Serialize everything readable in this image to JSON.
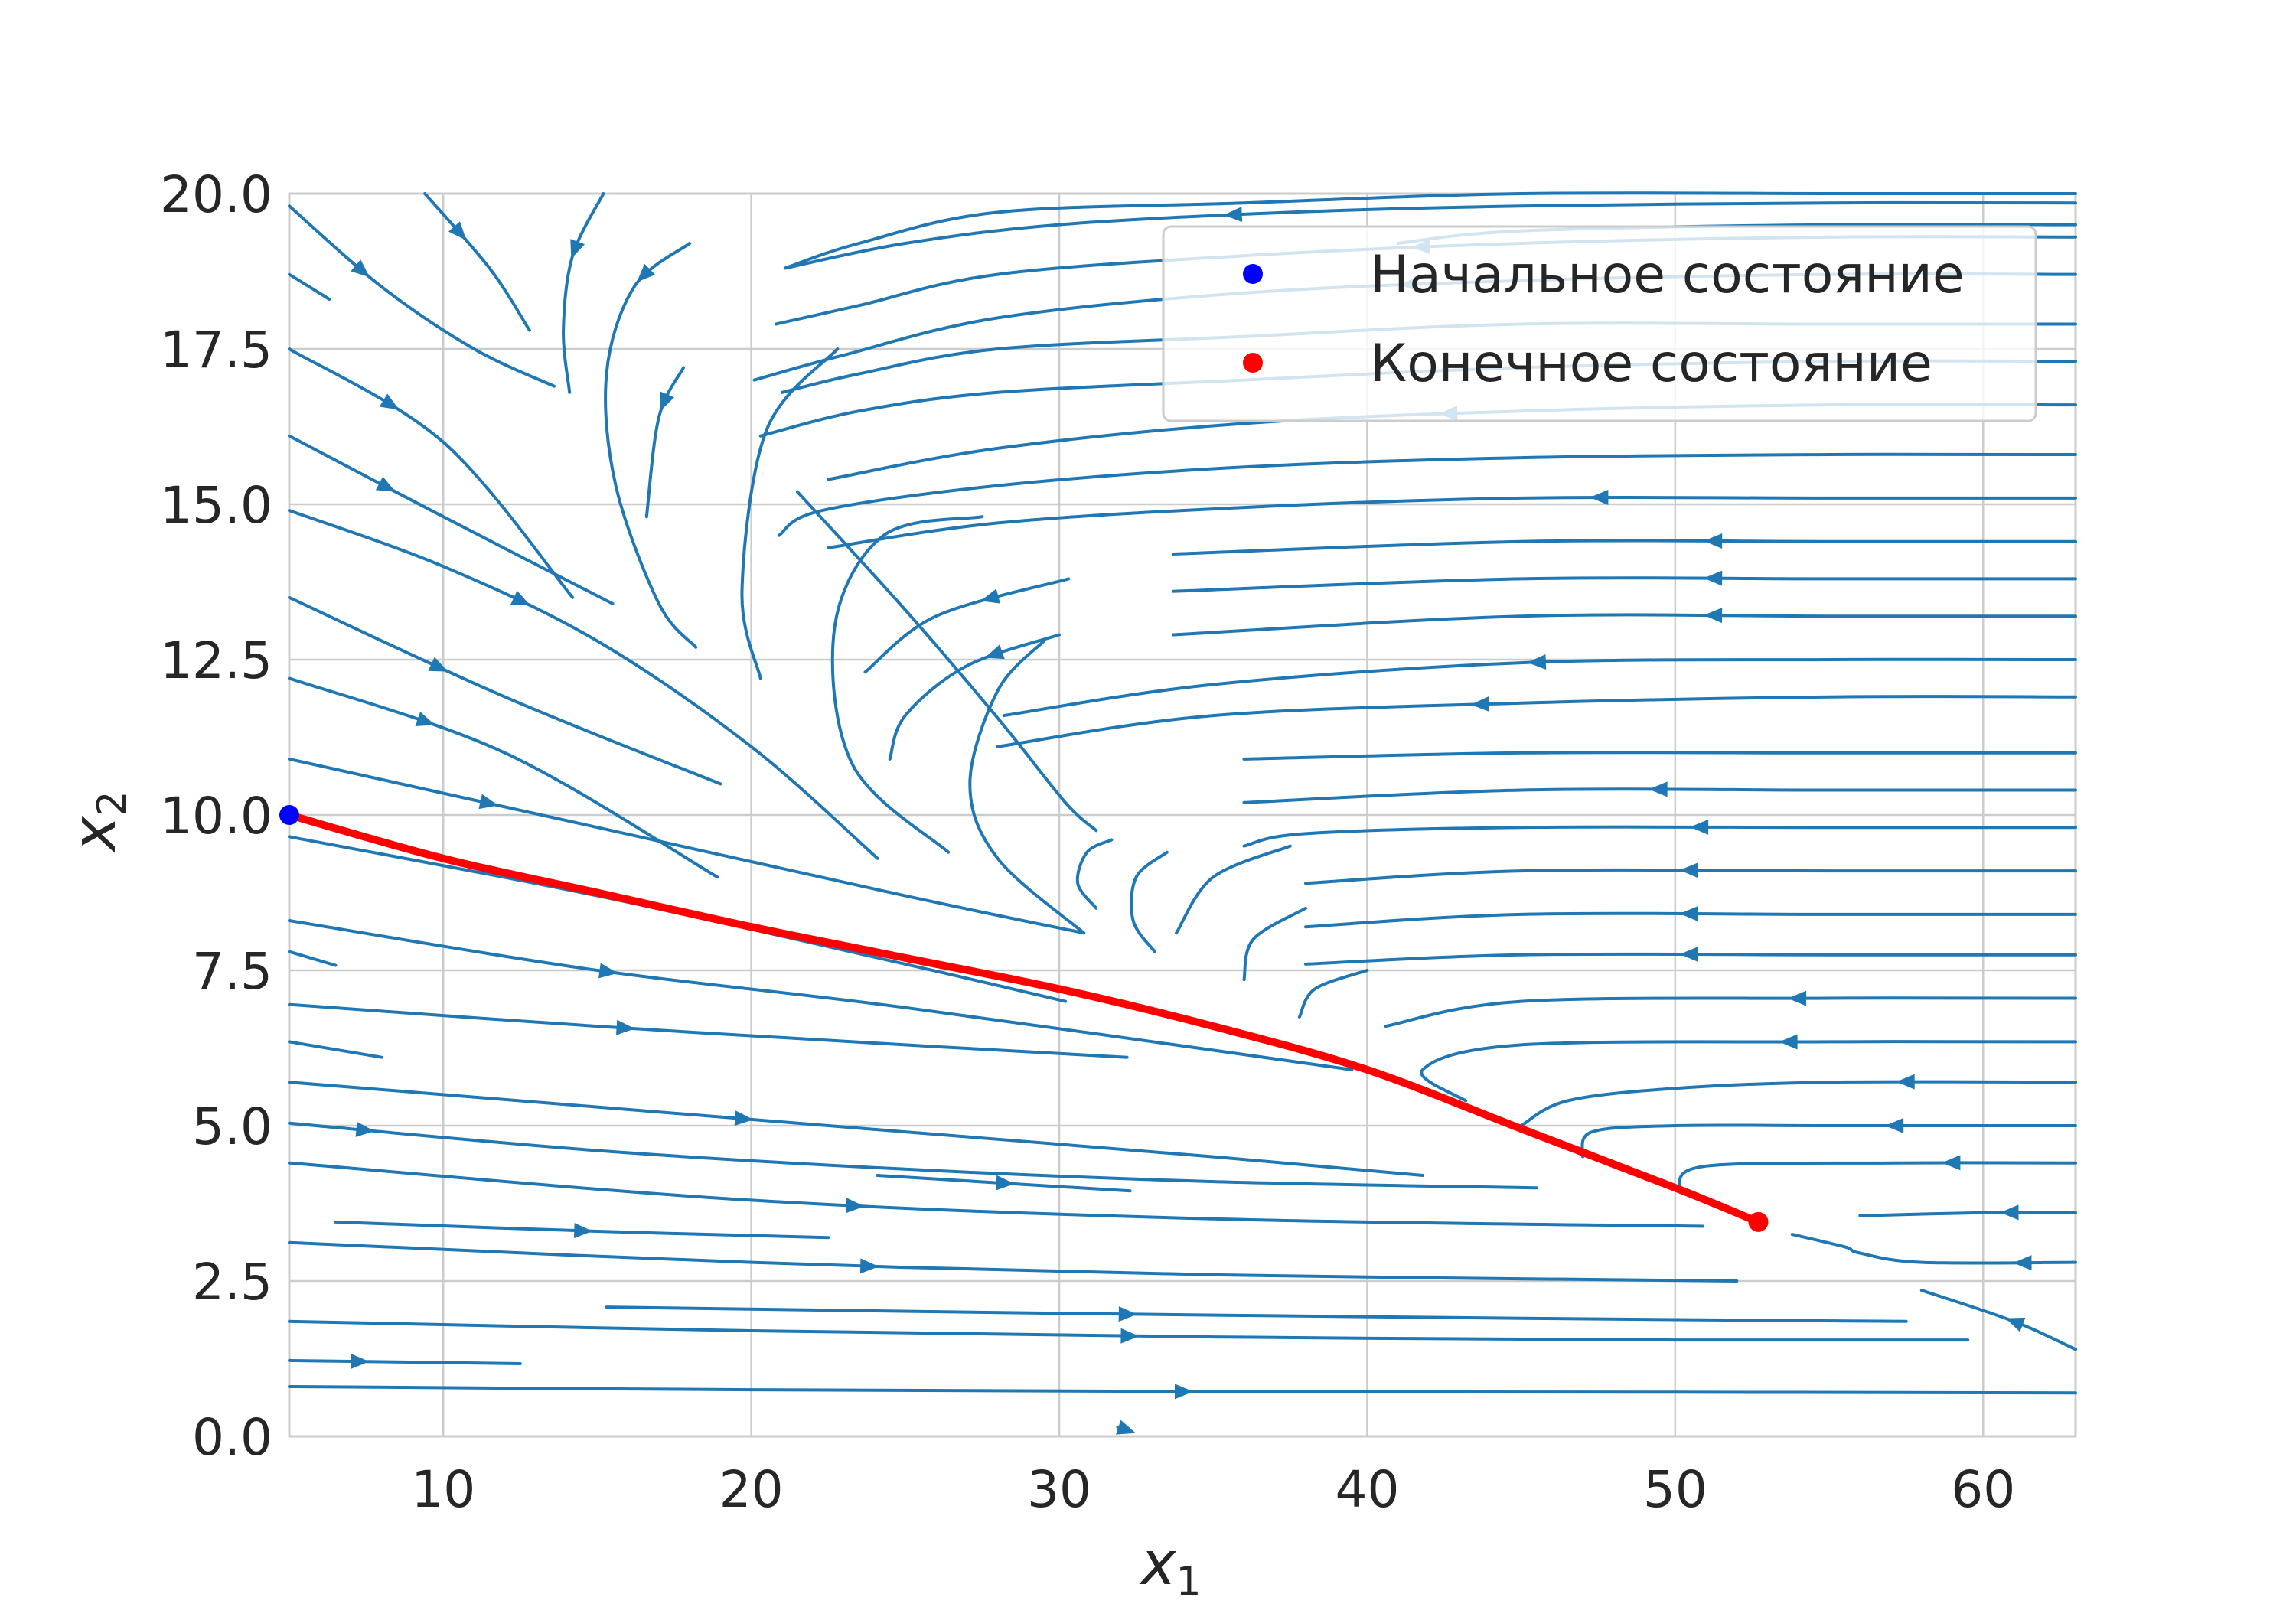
{
  "chart_data": {
    "type": "streamplot",
    "xlabel": "x",
    "xlabel_sub": "1",
    "ylabel": "x",
    "ylabel_sub": "2",
    "xlim": [
      5,
      63
    ],
    "ylim": [
      0,
      20
    ],
    "xticks": [
      10,
      20,
      30,
      40,
      50,
      60
    ],
    "xtick_labels": [
      "10",
      "20",
      "30",
      "40",
      "50",
      "60"
    ],
    "yticks": [
      0,
      2.5,
      5,
      7.5,
      10,
      12.5,
      15,
      17.5,
      20
    ],
    "ytick_labels": [
      "0.0",
      "2.5",
      "5.0",
      "7.5",
      "10.0",
      "12.5",
      "15.0",
      "17.5",
      "20.0"
    ],
    "grid": true,
    "legend": {
      "placement": "upper right",
      "entries": [
        {
          "label": "Начальное состояние",
          "color": "#0000ff",
          "marker": "dot"
        },
        {
          "label": "Конечное состояние",
          "color": "#ff0000",
          "marker": "dot"
        }
      ]
    },
    "colors": {
      "stream": "#1f77b4",
      "trajectory": "#ff0000",
      "start": "#0000ff",
      "end": "#ff0000",
      "grid": "#cccccc"
    },
    "trajectory": {
      "name": "trajectory",
      "x": [
        5,
        10,
        15,
        20,
        25,
        30,
        35,
        40,
        45,
        50,
        52.7
      ],
      "y": [
        10.0,
        9.3,
        8.75,
        8.2,
        7.7,
        7.2,
        6.6,
        5.9,
        4.95,
        4.0,
        3.45
      ]
    },
    "start_point": {
      "x": 5,
      "y": 10.0
    },
    "end_point": {
      "x": 52.7,
      "y": 3.45
    },
    "streamlines": [
      {
        "x": [
          5,
          20,
          35,
          50,
          63
        ],
        "y": [
          0.8,
          0.75,
          0.72,
          0.71,
          0.7
        ],
        "arrow": 0.5
      },
      {
        "x": [
          5,
          12.5
        ],
        "y": [
          1.22,
          1.17
        ],
        "arrow": 0.3
      },
      {
        "x": [
          5,
          20,
          35,
          50,
          59.5
        ],
        "y": [
          1.85,
          1.7,
          1.6,
          1.55,
          1.55
        ],
        "arrow": 0.5
      },
      {
        "x": [
          15.3,
          30,
          45,
          57.5
        ],
        "y": [
          2.08,
          1.98,
          1.9,
          1.85
        ],
        "arrow": 0.4
      },
      {
        "x": [
          5,
          20,
          35,
          52
        ],
        "y": [
          3.12,
          2.8,
          2.6,
          2.5
        ],
        "arrow": 0.4
      },
      {
        "x": [
          6.5,
          15,
          22.5
        ],
        "y": [
          3.45,
          3.3,
          3.2
        ],
        "arrow": 0.5
      },
      {
        "x": [
          5,
          20,
          35,
          50.9
        ],
        "y": [
          4.4,
          3.8,
          3.5,
          3.38
        ],
        "arrow": 0.4
      },
      {
        "x": [
          24.1,
          32.3
        ],
        "y": [
          4.2,
          3.95
        ],
        "arrow": 0.5
      },
      {
        "x": [
          5,
          15,
          25,
          35,
          45.5
        ],
        "y": [
          5.04,
          4.6,
          4.3,
          4.1,
          4.0
        ],
        "arrow": 0.06
      },
      {
        "x": [
          5,
          15,
          25,
          35,
          41.8
        ],
        "y": [
          5.7,
          5.3,
          4.9,
          4.5,
          4.2
        ],
        "arrow": 0.4
      },
      {
        "x": [
          5,
          15,
          25,
          32.2
        ],
        "y": [
          6.95,
          6.6,
          6.3,
          6.1
        ],
        "arrow": 0.4
      },
      {
        "x": [
          5,
          8
        ],
        "y": [
          6.35,
          6.1
        ],
        "arrow": -1
      },
      {
        "x": [
          5,
          6.5
        ],
        "y": [
          7.8,
          7.58
        ],
        "arrow": -1
      },
      {
        "x": [
          5,
          15,
          25,
          39.5
        ],
        "y": [
          8.3,
          7.5,
          6.9,
          5.9
        ],
        "arrow": 0.3
      },
      {
        "x": [
          5,
          15,
          25,
          30.2
        ],
        "y": [
          9.65,
          8.7,
          7.6,
          7.0
        ],
        "arrow": -1
      },
      {
        "x": [
          5,
          15,
          25,
          30.8
        ],
        "y": [
          10.9,
          9.8,
          8.7,
          8.1
        ],
        "arrow": 0.25
      },
      {
        "x": [
          5,
          12,
          18.9
        ],
        "y": [
          12.2,
          11.0,
          9.0
        ],
        "arrow": 0.3
      },
      {
        "x": [
          5,
          12,
          19
        ],
        "y": [
          13.5,
          11.9,
          10.5
        ],
        "arrow": 0.35
      },
      {
        "x": [
          5,
          10,
          15,
          20,
          24.1
        ],
        "y": [
          14.9,
          14.0,
          12.8,
          11.1,
          9.3
        ],
        "arrow": 0.36
      },
      {
        "x": [
          5,
          10,
          15.5
        ],
        "y": [
          16.1,
          14.8,
          13.4
        ],
        "arrow": 0.3
      },
      {
        "x": [
          5,
          10,
          14.2
        ],
        "y": [
          17.5,
          16.0,
          13.5
        ],
        "arrow": 0.3
      },
      {
        "x": [
          5,
          6.3
        ],
        "y": [
          18.7,
          18.3
        ],
        "arrow": -1
      },
      {
        "x": [
          5,
          8,
          11,
          13.6
        ],
        "y": [
          19.8,
          18.5,
          17.5,
          16.9
        ],
        "arrow": 0.3
      },
      {
        "x": [
          9.4,
          11.5,
          12.8
        ],
        "y": [
          20.0,
          18.8,
          17.8
        ],
        "arrow": 0.3
      },
      {
        "x": [
          15.2,
          14.2,
          13.9,
          14.1
        ],
        "y": [
          20.0,
          19.0,
          17.8,
          16.8
        ],
        "arrow": 0.3
      },
      {
        "x": [
          18.0,
          16.2,
          15.3,
          15.6,
          17.0,
          18.2
        ],
        "y": [
          19.2,
          18.5,
          17.1,
          15.3,
          13.4,
          12.7
        ],
        "arrow": 0.12
      },
      {
        "x": [
          17.8,
          17.0,
          16.6
        ],
        "y": [
          17.2,
          16.4,
          14.8
        ],
        "arrow": 0.25
      },
      {
        "x": [
          22.8,
          20.5,
          19.7,
          20.3
        ],
        "y": [
          17.5,
          16.2,
          13.6,
          12.2
        ],
        "arrow": -1
      },
      {
        "x": [
          21.5,
          25,
          28.1,
          30.2,
          31.2
        ],
        "y": [
          15.2,
          13.3,
          11.5,
          10.2,
          9.75
        ],
        "arrow": -1
      },
      {
        "x": [
          27.5,
          24.3,
          22.7,
          23.3,
          26.4
        ],
        "y": [
          14.8,
          14.5,
          13.0,
          10.8,
          9.4
        ],
        "arrow": -1
      },
      {
        "x": [
          30.3,
          26.0,
          23.7
        ],
        "y": [
          13.8,
          13.2,
          12.3
        ],
        "arrow": 0.35
      },
      {
        "x": [
          30.0,
          27.0,
          25.0,
          24.5
        ],
        "y": [
          12.9,
          12.4,
          11.6,
          10.9
        ],
        "arrow": 0.3
      },
      {
        "x": [
          31.7,
          30.9,
          30.6,
          31.2
        ],
        "y": [
          9.6,
          9.4,
          8.9,
          8.5
        ],
        "arrow": -1
      },
      {
        "x": [
          29.5,
          28.0,
          27.1,
          28.0,
          30.8
        ],
        "y": [
          12.8,
          12.0,
          10.5,
          9.3,
          8.1
        ],
        "arrow": -1
      },
      {
        "x": [
          33.5,
          32.5,
          32.4,
          33.1
        ],
        "y": [
          9.4,
          9.0,
          8.3,
          7.8
        ],
        "arrow": -1
      },
      {
        "x": [
          37.5,
          35.0,
          33.8
        ],
        "y": [
          9.5,
          9.0,
          8.1
        ],
        "arrow": -1
      },
      {
        "x": [
          38.0,
          36.3,
          36.0
        ],
        "y": [
          8.5,
          8.0,
          7.35
        ],
        "arrow": -1
      },
      {
        "x": [
          40.0,
          38.3,
          37.8
        ],
        "y": [
          7.5,
          7.2,
          6.75
        ],
        "arrow": -1
      },
      {
        "x": [
          63,
          55,
          45,
          41
        ],
        "y": [
          19.5,
          19.5,
          19.4,
          19.2
        ],
        "arrow": -1
      },
      {
        "x": [
          63,
          55,
          45,
          37.5,
          30,
          25,
          21.1
        ],
        "y": [
          19.85,
          19.85,
          19.8,
          19.7,
          19.5,
          19.2,
          18.8
        ],
        "arrow": 0.65
      },
      {
        "x": [
          63,
          55,
          45,
          36,
          28,
          23.5,
          21.1
        ],
        "y": [
          20.0,
          20.0,
          20.0,
          19.85,
          19.7,
          19.2,
          18.8
        ],
        "arrow": -1
      },
      {
        "x": [
          63,
          55,
          45,
          36,
          28,
          23.5,
          20.8
        ],
        "y": [
          19.3,
          19.3,
          19.2,
          19.0,
          18.7,
          18.2,
          17.9
        ],
        "arrow": 0.5
      },
      {
        "x": [
          63,
          55,
          45,
          36,
          28,
          23,
          20.1
        ],
        "y": [
          18.7,
          18.7,
          18.6,
          18.4,
          18.0,
          17.4,
          17.0
        ],
        "arrow": 0.5
      },
      {
        "x": [
          63,
          55,
          45,
          36,
          28,
          23.5,
          21.0
        ],
        "y": [
          17.9,
          17.9,
          17.9,
          17.7,
          17.5,
          17.1,
          16.8
        ],
        "arrow": -1
      },
      {
        "x": [
          63,
          55,
          45,
          36,
          28,
          23.5,
          20.3
        ],
        "y": [
          17.3,
          17.3,
          17.2,
          17.0,
          16.8,
          16.5,
          16.1
        ],
        "arrow": -1
      },
      {
        "x": [
          63,
          55,
          45,
          36,
          28,
          22.5
        ],
        "y": [
          16.6,
          16.6,
          16.5,
          16.3,
          15.9,
          15.4
        ],
        "arrow": 0.5
      },
      {
        "x": [
          63,
          55,
          45,
          36,
          28,
          22.3,
          20.9
        ],
        "y": [
          15.8,
          15.8,
          15.75,
          15.6,
          15.3,
          14.9,
          14.5
        ],
        "arrow": -1
      },
      {
        "x": [
          63,
          55,
          45,
          36,
          28,
          22.5
        ],
        "y": [
          15.1,
          15.1,
          15.1,
          14.95,
          14.7,
          14.3
        ],
        "arrow": 0.38
      },
      {
        "x": [
          63,
          55,
          45,
          33.7
        ],
        "y": [
          14.4,
          14.4,
          14.4,
          14.2
        ],
        "arrow": 0.4
      },
      {
        "x": [
          63,
          55,
          45,
          33.7
        ],
        "y": [
          13.8,
          13.8,
          13.8,
          13.6
        ],
        "arrow": 0.4
      },
      {
        "x": [
          63,
          55,
          45,
          33.7
        ],
        "y": [
          13.2,
          13.2,
          13.2,
          12.9
        ],
        "arrow": 0.4
      },
      {
        "x": [
          63,
          55,
          45,
          35,
          28.2
        ],
        "y": [
          12.5,
          12.5,
          12.45,
          12.1,
          11.6
        ],
        "arrow": 0.5
      },
      {
        "x": [
          63,
          55,
          45,
          35,
          28.0
        ],
        "y": [
          11.9,
          11.9,
          11.8,
          11.6,
          11.1
        ],
        "arrow": 0.55
      },
      {
        "x": [
          63,
          55,
          45,
          36.0
        ],
        "y": [
          11.0,
          11.0,
          11.0,
          10.9
        ],
        "arrow": -1
      },
      {
        "x": [
          63,
          55,
          45,
          36.0
        ],
        "y": [
          10.4,
          10.4,
          10.4,
          10.2
        ],
        "arrow": 0.5
      },
      {
        "x": [
          63,
          55,
          45,
          38.0,
          36.0
        ],
        "y": [
          9.8,
          9.8,
          9.8,
          9.7,
          9.5
        ],
        "arrow": 0.45
      },
      {
        "x": [
          63,
          55,
          45,
          38.0
        ],
        "y": [
          9.1,
          9.1,
          9.1,
          8.9
        ],
        "arrow": 0.5
      },
      {
        "x": [
          63,
          55,
          45,
          38.0
        ],
        "y": [
          8.4,
          8.4,
          8.4,
          8.2
        ],
        "arrow": 0.5
      },
      {
        "x": [
          63,
          55,
          45,
          38.0
        ],
        "y": [
          7.75,
          7.75,
          7.75,
          7.6
        ],
        "arrow": 0.5
      },
      {
        "x": [
          63,
          55,
          45,
          40.6
        ],
        "y": [
          7.05,
          7.05,
          7.0,
          6.6
        ],
        "arrow": 0.4
      },
      {
        "x": [
          63,
          55,
          45,
          41.8,
          43.2
        ],
        "y": [
          6.35,
          6.35,
          6.3,
          5.9,
          5.4
        ],
        "arrow": 0.4
      },
      {
        "x": [
          63,
          55,
          50,
          46.5,
          45.0
        ],
        "y": [
          5.7,
          5.7,
          5.6,
          5.4,
          5.0
        ],
        "arrow": 0.3
      },
      {
        "x": [
          63,
          55,
          50,
          47.3,
          47.0
        ],
        "y": [
          5.0,
          5.0,
          5.0,
          4.9,
          4.5
        ],
        "arrow": 0.35
      },
      {
        "x": [
          63,
          57,
          51,
          50.1
        ],
        "y": [
          4.4,
          4.4,
          4.35,
          4.0
        ],
        "arrow": 0.3
      },
      {
        "x": [
          63,
          60,
          56.0
        ],
        "y": [
          3.6,
          3.6,
          3.55
        ],
        "arrow": 0.3
      },
      {
        "x": [
          63,
          58,
          56,
          55.5,
          53.8
        ],
        "y": [
          2.8,
          2.8,
          2.95,
          3.05,
          3.25
        ],
        "arrow": 0.18
      },
      {
        "x": [
          63,
          61,
          58.0
        ],
        "y": [
          1.4,
          1.85,
          2.35
        ],
        "arrow": 0.4
      },
      {
        "x": [
          31.9,
          32.2
        ],
        "y": [
          0.15,
          0.1
        ],
        "arrow": 0.9
      }
    ]
  }
}
